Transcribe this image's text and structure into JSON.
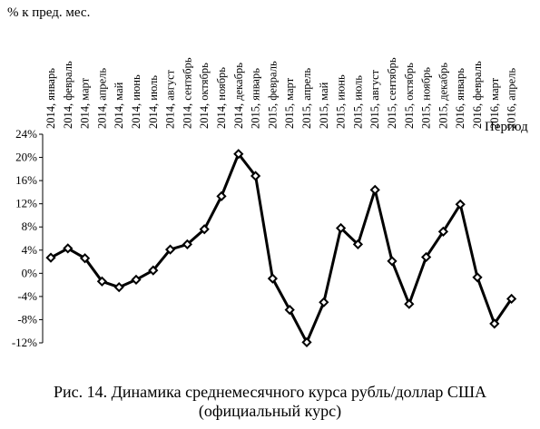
{
  "chart_data": {
    "type": "line",
    "ylabel": "%  к пред. мес.",
    "xlabel": "Период",
    "y_ticks": [
      "24%",
      "20%",
      "16%",
      "12%",
      "8%",
      "4%",
      "0%",
      "-4%",
      "-8%",
      "-12%"
    ],
    "ylim": [
      -12,
      24
    ],
    "grid": false,
    "legend": "none",
    "marker": "diamond-open",
    "line_color": "#000000",
    "categories": [
      "2014, январь",
      "2014, февраль",
      "2014, март",
      "2014, апрель",
      "2014, май",
      "2014, июнь",
      "2014, июль",
      "2014, август",
      "2014, сентябрь",
      "2014, октябрь",
      "2014, ноябрь",
      "2014, декабрь",
      "2015, январь",
      "2015, февраль",
      "2015, март",
      "2015, апрель",
      "2015, май",
      "2015, июнь",
      "2015, июль",
      "2015, август",
      "2015, сентябрь",
      "2015, октябрь",
      "2015, ноябрь",
      "2015, декабрь",
      "2016, январь",
      "2016, февраль",
      "2016, март",
      "2016, апрель"
    ],
    "values": [
      2.7,
      4.3,
      2.6,
      -1.4,
      -2.4,
      -1.1,
      0.5,
      4.1,
      5.0,
      7.6,
      13.3,
      20.6,
      16.8,
      -0.9,
      -6.3,
      -11.9,
      -5.0,
      7.8,
      5.0,
      14.4,
      2.1,
      -5.3,
      2.8,
      7.2,
      11.9,
      -0.7,
      -8.7,
      -4.4
    ]
  },
  "caption": {
    "line1": "Рис. 14. Динамика среднемесячного курса рубль/доллар США",
    "line2": "(официальный курс)"
  }
}
